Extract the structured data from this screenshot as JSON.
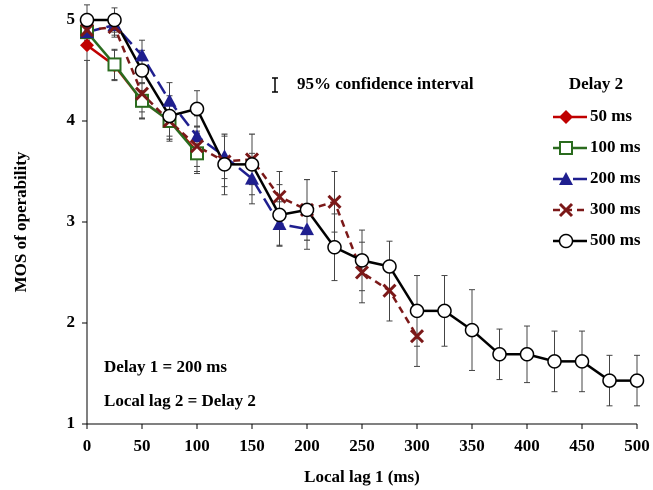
{
  "chart_data": {
    "type": "line",
    "xlabel": "Local lag 1 (ms)",
    "ylabel": "MOS of operability",
    "annotations": [
      "95% confidence interval",
      "Delay 1 = 200 ms",
      "Local lag 2 = Delay 2"
    ],
    "legend_title": "Delay 2",
    "legend": "right",
    "grid": false,
    "xlim": [
      0,
      500
    ],
    "xticks": [
      0,
      50,
      100,
      150,
      200,
      250,
      300,
      350,
      400,
      450,
      500
    ],
    "ylim": [
      1,
      5
    ],
    "yticks": [
      1,
      2,
      3,
      4,
      5
    ],
    "series": [
      {
        "name": "50 ms",
        "color": "#c00000",
        "marker": "diamond",
        "dash": "solid",
        "x": [
          0,
          25,
          50,
          75,
          100
        ],
        "values": [
          4.75,
          4.55,
          4.2,
          4.0,
          3.7
        ],
        "errors": [
          0.15,
          0.15,
          0.18,
          0.18,
          0.2
        ]
      },
      {
        "name": "100 ms",
        "color": "#2a6b1e",
        "marker": "square",
        "dash": "solid",
        "x": [
          0,
          25,
          50,
          75,
          100
        ],
        "values": [
          4.88,
          4.56,
          4.2,
          4.0,
          3.68
        ],
        "errors": [
          0.12,
          0.15,
          0.17,
          0.18,
          0.2
        ]
      },
      {
        "name": "200 ms",
        "color": "#1f1f8f",
        "marker": "triangle",
        "dash": "longdash",
        "x": [
          0,
          25,
          50,
          75,
          100,
          125,
          150,
          175,
          200
        ],
        "values": [
          4.88,
          4.95,
          4.65,
          4.2,
          3.85,
          3.65,
          3.43,
          2.98,
          2.93
        ],
        "errors": [
          0.12,
          0.1,
          0.15,
          0.18,
          0.2,
          0.22,
          0.25,
          0.22,
          0.2
        ]
      },
      {
        "name": "300 ms",
        "color": "#7b1818",
        "marker": "cross",
        "dash": "dash",
        "x": [
          0,
          25,
          50,
          75,
          100,
          125,
          150,
          175,
          200,
          225,
          250,
          275,
          300
        ],
        "values": [
          4.9,
          4.93,
          4.27,
          4.0,
          3.75,
          3.6,
          3.62,
          3.25,
          3.12,
          3.2,
          2.5,
          2.32,
          1.87
        ],
        "errors": [
          0.1,
          0.1,
          0.18,
          0.2,
          0.2,
          0.25,
          0.25,
          0.25,
          0.3,
          0.3,
          0.3,
          0.3,
          0.3
        ]
      },
      {
        "name": "500 ms",
        "color": "#000000",
        "marker": "circle",
        "dash": "solid",
        "x": [
          0,
          25,
          50,
          75,
          100,
          125,
          150,
          175,
          200,
          225,
          250,
          275,
          300,
          325,
          350,
          375,
          400,
          425,
          450,
          475,
          500
        ],
        "values": [
          5.0,
          5.0,
          4.5,
          4.05,
          4.12,
          3.57,
          3.57,
          3.07,
          3.12,
          2.75,
          2.62,
          2.56,
          2.12,
          2.12,
          1.93,
          1.69,
          1.69,
          1.62,
          1.62,
          1.43,
          1.43
        ],
        "errors": [
          0.15,
          0.12,
          0.2,
          0.2,
          0.18,
          0.3,
          0.3,
          0.3,
          0.3,
          0.33,
          0.3,
          0.25,
          0.35,
          0.35,
          0.4,
          0.25,
          0.28,
          0.3,
          0.3,
          0.25,
          0.25
        ]
      }
    ]
  }
}
